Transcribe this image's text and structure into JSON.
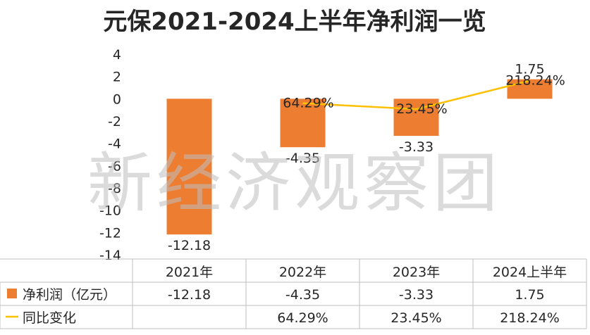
{
  "chart_data": {
    "type": "bar",
    "title": "元保2021-2024上半年净利润一览",
    "categories": [
      "2021年",
      "2022年",
      "2023年",
      "2024上半年"
    ],
    "ylim": [
      -14,
      4
    ],
    "yticks": [
      "4",
      "2",
      "0",
      "-2",
      "-4",
      "-6",
      "-8",
      "-10",
      "-12",
      "-14"
    ],
    "grid": false,
    "legend": "data-table",
    "series": [
      {
        "name": "净利润（亿元）",
        "kind": "bar",
        "color": "#ED7D31",
        "values": [
          -12.18,
          -4.35,
          -3.33,
          1.75
        ],
        "labels": [
          "-12.18",
          "-4.35",
          "-3.33",
          "1.75"
        ]
      },
      {
        "name": "同比变化",
        "kind": "line",
        "color": "#FFC000",
        "values": [
          null,
          64.29,
          23.45,
          218.24
        ],
        "labels": [
          "",
          "64.29%",
          "23.45%",
          "218.24%"
        ]
      }
    ]
  },
  "watermark": "新经济观察团"
}
